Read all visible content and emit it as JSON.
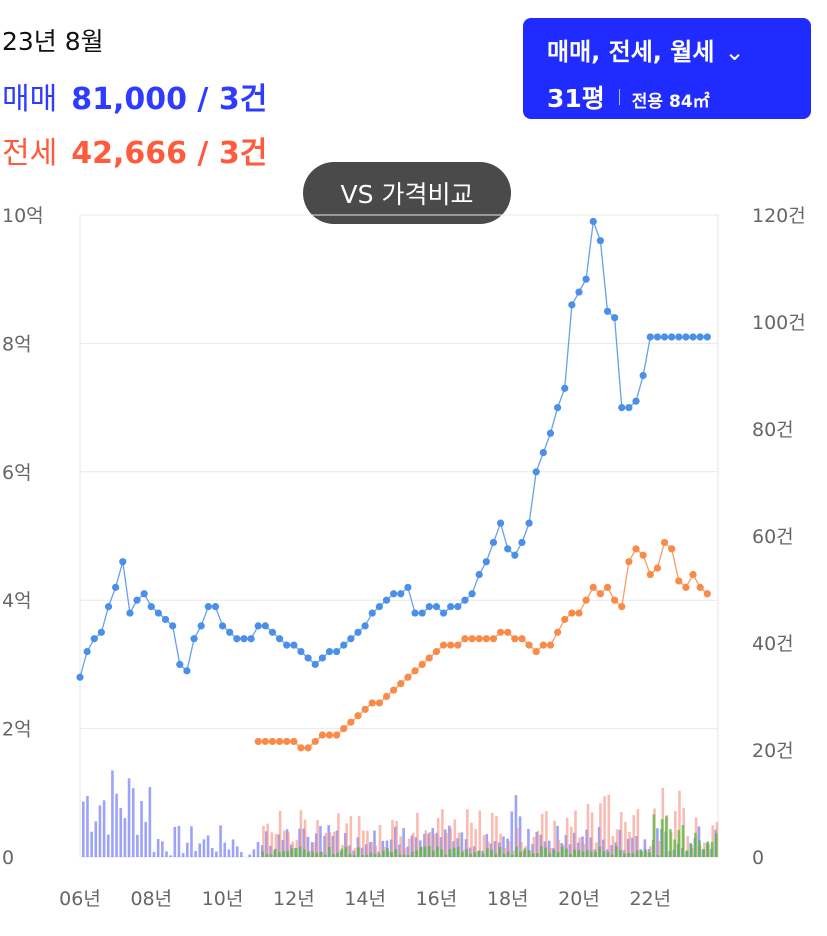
{
  "header": {
    "period": "23년 8월",
    "sale_label": "매매",
    "sale_value": "81,000 / 3건",
    "jeonse_label": "전세",
    "jeonse_value": "42,666 / 3건"
  },
  "type_selector": {
    "label": "매매, 전세, 월세",
    "chevron_icon": "chevron-down-icon",
    "pyeong": "31평",
    "area": "전용 84㎡"
  },
  "compare_button": {
    "label": "VS 가격비교"
  },
  "colors": {
    "sale": "#4a90e8",
    "jeonse": "#fa8a48",
    "sale_bar": "#4a57f2",
    "jeonse_bar": "#f7907e",
    "rent_bar": "#3fbf2f",
    "accent": "#1f2bff"
  },
  "chart_data": {
    "type": "line",
    "x_ticks": [
      "06년",
      "08년",
      "10년",
      "12년",
      "14년",
      "16년",
      "18년",
      "20년",
      "22년"
    ],
    "x_tick_years": [
      2006,
      2008,
      2010,
      2012,
      2014,
      2016,
      2018,
      2020,
      2022
    ],
    "xlim": [
      2006.0,
      2023.9
    ],
    "y_left": {
      "ticks": [
        "0",
        "2억",
        "4억",
        "6억",
        "8억",
        "10억"
      ],
      "tick_values": [
        0,
        2,
        4,
        6,
        8,
        10
      ],
      "ylim": [
        0,
        10
      ],
      "unit": "억"
    },
    "y_right": {
      "ticks": [
        "0",
        "20건",
        "40건",
        "60건",
        "80건",
        "100건",
        "120건"
      ],
      "tick_values": [
        0,
        20,
        40,
        60,
        80,
        100,
        120
      ],
      "ylim": [
        0,
        120
      ],
      "unit": "건"
    },
    "grid": true,
    "series": [
      {
        "key": "sale",
        "x": [
          2006.0,
          2006.2,
          2006.4,
          2006.6,
          2006.8,
          2007.0,
          2007.2,
          2007.4,
          2007.6,
          2007.8,
          2008.0,
          2008.2,
          2008.4,
          2008.6,
          2008.8,
          2009.0,
          2009.2,
          2009.4,
          2009.6,
          2009.8,
          2010.0,
          2010.2,
          2010.4,
          2010.6,
          2010.8,
          2011.0,
          2011.2,
          2011.4,
          2011.6,
          2011.8,
          2012.0,
          2012.2,
          2012.4,
          2012.6,
          2012.8,
          2013.0,
          2013.2,
          2013.4,
          2013.6,
          2013.8,
          2014.0,
          2014.2,
          2014.4,
          2014.6,
          2014.8,
          2015.0,
          2015.2,
          2015.4,
          2015.6,
          2015.8,
          2016.0,
          2016.2,
          2016.4,
          2016.6,
          2016.8,
          2017.0,
          2017.2,
          2017.4,
          2017.6,
          2017.8,
          2018.0,
          2018.2,
          2018.4,
          2018.6,
          2018.8,
          2019.0,
          2019.2,
          2019.4,
          2019.6,
          2019.8,
          2020.0,
          2020.2,
          2020.4,
          2020.6,
          2020.8,
          2021.0,
          2021.2,
          2021.4,
          2021.6,
          2021.8,
          2022.0,
          2022.2,
          2022.4,
          2022.6,
          2022.8,
          2023.0,
          2023.2,
          2023.4,
          2023.6
        ],
        "values": [
          2.8,
          3.2,
          3.4,
          3.5,
          3.9,
          4.2,
          4.6,
          3.8,
          4.0,
          4.1,
          3.9,
          3.8,
          3.7,
          3.6,
          3.0,
          2.9,
          3.4,
          3.6,
          3.9,
          3.9,
          3.6,
          3.5,
          3.4,
          3.4,
          3.4,
          3.6,
          3.6,
          3.5,
          3.4,
          3.3,
          3.3,
          3.2,
          3.1,
          3.0,
          3.1,
          3.2,
          3.2,
          3.3,
          3.4,
          3.5,
          3.6,
          3.8,
          3.9,
          4.0,
          4.1,
          4.1,
          4.2,
          3.8,
          3.8,
          3.9,
          3.9,
          3.8,
          3.9,
          3.9,
          4.0,
          4.1,
          4.4,
          4.6,
          4.9,
          5.2,
          4.8,
          4.7,
          4.9,
          5.2,
          6.0,
          6.3,
          6.6,
          7.0,
          7.3,
          8.6,
          8.8,
          9.0,
          9.9,
          9.6,
          8.5,
          8.4,
          7.0,
          7.0,
          7.1,
          7.5,
          8.1,
          8.1,
          8.1,
          8.1,
          8.1,
          8.1,
          8.1,
          8.1,
          8.1
        ],
        "values_note_only_for_plot": ""
      },
      {
        "key": "jeonse",
        "x": [
          2011.0,
          2011.2,
          2011.4,
          2011.6,
          2011.8,
          2012.0,
          2012.2,
          2012.4,
          2012.6,
          2012.8,
          2013.0,
          2013.2,
          2013.4,
          2013.6,
          2013.8,
          2014.0,
          2014.2,
          2014.4,
          2014.6,
          2014.8,
          2015.0,
          2015.2,
          2015.4,
          2015.6,
          2015.8,
          2016.0,
          2016.2,
          2016.4,
          2016.6,
          2016.8,
          2017.0,
          2017.2,
          2017.4,
          2017.6,
          2017.8,
          2018.0,
          2018.2,
          2018.4,
          2018.6,
          2018.8,
          2019.0,
          2019.2,
          2019.4,
          2019.6,
          2019.8,
          2020.0,
          2020.2,
          2020.4,
          2020.6,
          2020.8,
          2021.0,
          2021.2,
          2021.4,
          2021.6,
          2021.8,
          2022.0,
          2022.2,
          2022.4,
          2022.6,
          2022.8,
          2023.0,
          2023.2,
          2023.4,
          2023.6
        ],
        "values": [
          1.8,
          1.8,
          1.8,
          1.8,
          1.8,
          1.8,
          1.7,
          1.7,
          1.8,
          1.9,
          1.9,
          1.9,
          2.0,
          2.1,
          2.2,
          2.3,
          2.4,
          2.4,
          2.5,
          2.6,
          2.7,
          2.8,
          2.9,
          3.0,
          3.1,
          3.2,
          3.3,
          3.3,
          3.3,
          3.4,
          3.4,
          3.4,
          3.4,
          3.4,
          3.5,
          3.5,
          3.4,
          3.4,
          3.3,
          3.2,
          3.3,
          3.3,
          3.5,
          3.7,
          3.8,
          3.8,
          4.0,
          4.2,
          4.1,
          4.2,
          4.0,
          3.9,
          4.6,
          4.8,
          4.7,
          4.4,
          4.5,
          4.9,
          4.8,
          4.3,
          4.2,
          4.4,
          4.2,
          4.1
        ]
      }
    ]
  }
}
